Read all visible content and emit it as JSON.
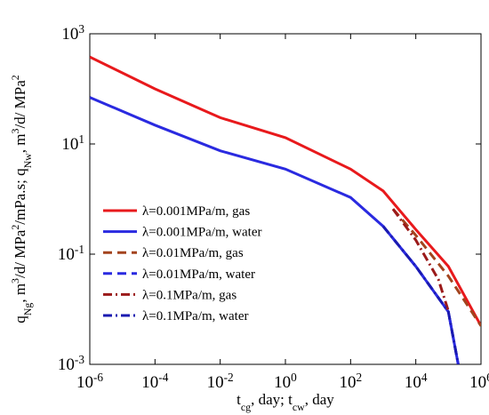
{
  "chart_data": {
    "type": "line",
    "x_label": "t_{cg}, day; t_{cw}, day",
    "y_label": "q_{Ng}, m^{3}/d/ MPa^{2}/mPa.s; q_{Nw}, m^{3}/d/ MPa^{2}",
    "log_x": true,
    "log_y": true,
    "xlim": [
      1e-06,
      1000000.0
    ],
    "ylim": [
      0.001,
      1000.0
    ],
    "xticks": [
      {
        "value": 1e-06,
        "label": "10^{-6}"
      },
      {
        "value": 0.0001,
        "label": "10^{-4}"
      },
      {
        "value": 0.01,
        "label": "10^{-2}"
      },
      {
        "value": 1,
        "label": "10^{0}"
      },
      {
        "value": 100,
        "label": "10^{2}"
      },
      {
        "value": 10000,
        "label": "10^{4}"
      },
      {
        "value": 1000000,
        "label": "10^{6}"
      }
    ],
    "yticks": [
      {
        "value": 0.001,
        "label": "10^{-3}"
      },
      {
        "value": 0.1,
        "label": "10^{-1}"
      },
      {
        "value": 10,
        "label": "10^{1}"
      },
      {
        "value": 1000,
        "label": "10^{3}"
      }
    ],
    "legend": "left",
    "series": [
      {
        "name": "λ=0.001MPa/m, gas",
        "color": "#e8191c",
        "dash": "solid",
        "x": [
          1e-06,
          0.0001,
          0.01,
          1,
          100,
          1000,
          10000,
          100000,
          1000000
        ],
        "values": [
          380,
          100,
          30,
          13,
          3.5,
          1.4,
          0.28,
          0.06,
          0.005
        ]
      },
      {
        "name": "λ=0.001MPa/m, water",
        "color": "#2a2ae0",
        "dash": "solid",
        "x": [
          1e-06,
          0.0001,
          0.01,
          1,
          100,
          1000,
          10000,
          100000,
          200000
        ],
        "values": [
          70,
          22,
          7.5,
          3.5,
          1.07,
          0.32,
          0.06,
          0.009,
          0.001
        ]
      },
      {
        "name": "λ=0.01MPa/m, gas",
        "color": "#a3441e",
        "dash": "dash",
        "x": [
          2000,
          10000,
          100000,
          1000000
        ],
        "values": [
          0.66,
          0.22,
          0.04,
          0.005
        ]
      },
      {
        "name": "λ=0.01MPa/m, water",
        "color": "#2a2ae0",
        "dash": "dash",
        "x": [
          1000,
          10000,
          100000,
          200000
        ],
        "values": [
          0.32,
          0.06,
          0.009,
          0.001
        ]
      },
      {
        "name": "λ=0.1MPa/m, gas",
        "color": "#9b1a1a",
        "dash": "dashdot",
        "x": [
          2000,
          10000,
          50000,
          100000
        ],
        "values": [
          0.66,
          0.18,
          0.034,
          0.0093
        ]
      },
      {
        "name": "λ=0.1MPa/m, water",
        "color": "#1a1ab0",
        "dash": "dashdot",
        "x": [
          1000,
          10000,
          100000,
          200000
        ],
        "values": [
          0.32,
          0.06,
          0.009,
          0.001
        ]
      }
    ]
  }
}
